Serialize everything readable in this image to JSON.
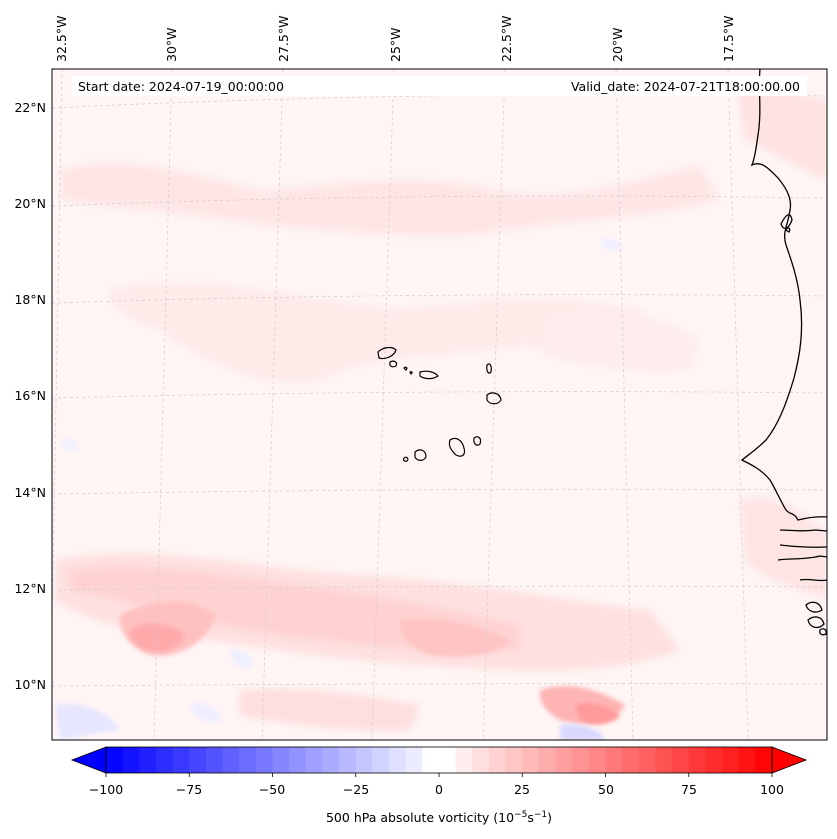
{
  "map": {
    "start_date_text": "Start date: 2024-07-19_00:00:00",
    "valid_date_text": "Valid_date: 2024-07-21T18:00:00.00",
    "lon_labels": [
      "32.5°W",
      "30°W",
      "27.5°W",
      "25°W",
      "22.5°W",
      "20°W",
      "17.5°W"
    ],
    "lat_labels": [
      "22°N",
      "20°N",
      "18°N",
      "16°N",
      "14°N",
      "12°N",
      "10°N"
    ],
    "gridlines": "on",
    "features": [
      "coastline-west-africa",
      "cape-verde-islands"
    ]
  },
  "colorbar": {
    "label_main": "500 hPa absolute vorticity (10",
    "label_exp1": "−5",
    "label_mid": "s",
    "label_exp2": "−1",
    "label_end": ")",
    "ticks": [
      "−100",
      "−75",
      "−50",
      "−25",
      "0",
      "25",
      "50",
      "75",
      "100"
    ],
    "tick_values": [
      -100,
      -75,
      -50,
      -25,
      0,
      25,
      50,
      75,
      100
    ],
    "range": [
      -100,
      100
    ],
    "step": 5,
    "extend": "both",
    "colormap": "bwr",
    "color_min": "#0000ff",
    "color_mid": "#ffffff",
    "color_max": "#ff0000"
  }
}
